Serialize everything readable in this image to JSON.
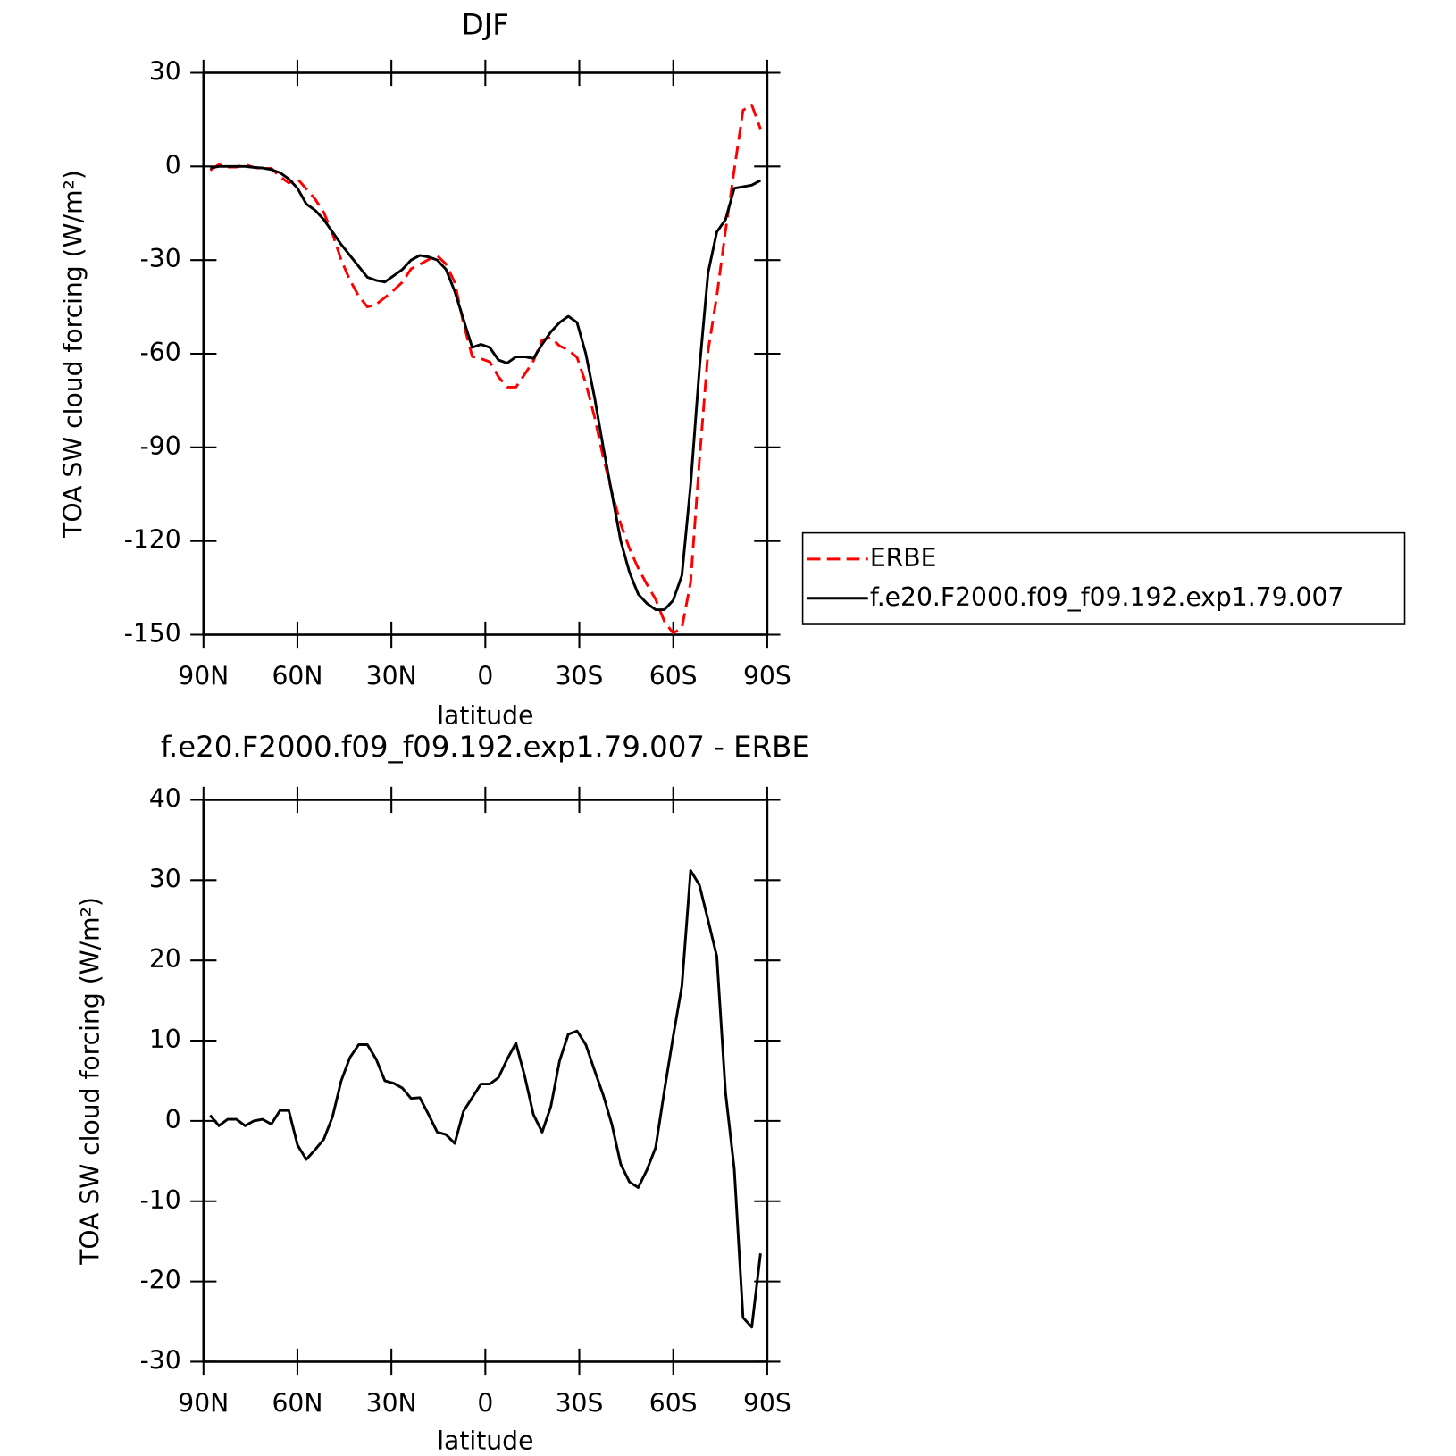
{
  "chart_data": [
    {
      "type": "line",
      "title": "DJF",
      "xlabel": "latitude",
      "ylabel": "TOA SW cloud forcing (W/m²)",
      "x": [
        87.86,
        85.07,
        82.28,
        79.49,
        76.7,
        73.91,
        71.13,
        68.34,
        65.55,
        62.76,
        59.97,
        57.18,
        54.39,
        51.6,
        48.81,
        46.02,
        43.24,
        40.45,
        37.66,
        34.87,
        32.08,
        29.29,
        26.5,
        23.71,
        20.92,
        18.13,
        15.35,
        12.56,
        9.77,
        6.98,
        4.19,
        1.4,
        -1.4,
        -4.19,
        -6.98,
        -9.77,
        -12.56,
        -15.35,
        -18.13,
        -20.92,
        -23.71,
        -26.5,
        -29.29,
        -32.08,
        -34.87,
        -37.66,
        -40.45,
        -43.24,
        -46.02,
        -48.81,
        -51.6,
        -54.39,
        -57.18,
        -59.97,
        -62.76,
        -65.55,
        -68.34,
        -71.13,
        -73.91,
        -76.7,
        -79.49,
        -82.28,
        -85.07,
        -87.86
      ],
      "series": [
        {
          "name": "ERBE",
          "color": "#ff0000",
          "dash": true,
          "values": [
            -1.2,
            0.6,
            -0.2,
            -0.2,
            0.6,
            -0.3,
            -0.7,
            -0.6,
            -3.3,
            -5.3,
            -4,
            -7.2,
            -10.4,
            -14.7,
            -21.5,
            -30,
            -36.4,
            -41.5,
            -45,
            -44.2,
            -42,
            -39.7,
            -37.1,
            -32.8,
            -31.4,
            -29.8,
            -28.6,
            -31.3,
            -37.2,
            -50.2,
            -60.9,
            -61.6,
            -62.6,
            -67.4,
            -70.7,
            -70.7,
            -66.6,
            -62.3,
            -55.6,
            -54.8,
            -57.5,
            -58.8,
            -61.2,
            -69.5,
            -80.3,
            -93.2,
            -104.5,
            -114.6,
            -122.4,
            -128.7,
            -133.9,
            -138.7,
            -145.8,
            -149.5,
            -147.8,
            -133.2,
            -94.4,
            -59,
            -41.5,
            -20.5,
            -1,
            18,
            19.7,
            12
          ]
        },
        {
          "name": "f.e20.F2000.f09_f09.192.exp1.79.007",
          "color": "#000000",
          "dash": false,
          "values": [
            -0.5,
            0,
            0,
            0,
            0,
            -0.3,
            -0.5,
            -1,
            -2,
            -4,
            -7,
            -12,
            -14,
            -17,
            -21,
            -25,
            -28.5,
            -32,
            -35.5,
            -36.5,
            -37,
            -35,
            -33,
            -30,
            -28.5,
            -29,
            -30,
            -33,
            -40,
            -49,
            -58,
            -57,
            -58,
            -62,
            -63,
            -61,
            -61,
            -61.5,
            -57,
            -53,
            -50,
            -48,
            -50,
            -60,
            -74,
            -90,
            -105,
            -120,
            -130,
            -137,
            -140,
            -142,
            -142,
            -139,
            -131,
            -102,
            -65,
            -34,
            -21,
            -17,
            -7,
            -6.5,
            -6,
            -4.5
          ]
        }
      ],
      "xlim": [
        90,
        -90
      ],
      "xticks": [
        {
          "value": 90,
          "label": "90N"
        },
        {
          "value": 60,
          "label": "60N"
        },
        {
          "value": 30,
          "label": "30N"
        },
        0,
        {
          "value": -30,
          "label": "30S"
        },
        {
          "value": -60,
          "label": "60S"
        },
        {
          "value": -90,
          "label": "90S"
        }
      ],
      "ylim": [
        -150,
        30
      ],
      "yticks": [
        30,
        0,
        -30,
        -60,
        -90,
        -120,
        -150
      ],
      "legend": "right"
    },
    {
      "type": "line",
      "title": "f.e20.F2000.f09_f09.192.exp1.79.007 - ERBE",
      "xlabel": "latitude",
      "ylabel": "TOA SW cloud forcing (W/m²)",
      "x": [
        87.86,
        85.07,
        82.28,
        79.49,
        76.7,
        73.91,
        71.13,
        68.34,
        65.55,
        62.76,
        59.97,
        57.18,
        54.39,
        51.6,
        48.81,
        46.02,
        43.24,
        40.45,
        37.66,
        34.87,
        32.08,
        29.29,
        26.5,
        23.71,
        20.92,
        18.13,
        15.35,
        12.56,
        9.77,
        6.98,
        4.19,
        1.4,
        -1.4,
        -4.19,
        -6.98,
        -9.77,
        -12.56,
        -15.35,
        -18.13,
        -20.92,
        -23.71,
        -26.5,
        -29.29,
        -32.08,
        -34.87,
        -37.66,
        -40.45,
        -43.24,
        -46.02,
        -48.81,
        -51.6,
        -54.39,
        -57.18,
        -59.97,
        -62.76,
        -65.55,
        -68.34,
        -71.13,
        -73.91,
        -76.7,
        -79.49,
        -82.28,
        -85.07,
        -87.86
      ],
      "series": [
        {
          "color": "#000000",
          "dash": false,
          "values": [
            0.7,
            -0.6,
            0.2,
            0.2,
            -0.6,
            0,
            0.2,
            -0.4,
            1.3,
            1.3,
            -3,
            -4.8,
            -3.6,
            -2.3,
            0.5,
            5,
            7.9,
            9.5,
            9.5,
            7.7,
            5,
            4.7,
            4.1,
            2.8,
            2.9,
            0.8,
            -1.4,
            -1.7,
            -2.8,
            1.2,
            2.9,
            4.6,
            4.6,
            5.4,
            7.7,
            9.7,
            5.6,
            0.8,
            -1.4,
            1.8,
            7.5,
            10.8,
            11.2,
            9.5,
            6.3,
            3.2,
            -0.5,
            -5.4,
            -7.6,
            -8.3,
            -6.1,
            -3.3,
            3.8,
            10.5,
            16.8,
            31.2,
            29.4,
            25,
            20.5,
            3.5,
            -6,
            -24.5,
            -25.7,
            -16.5
          ]
        }
      ],
      "xlim": [
        90,
        -90
      ],
      "xticks": [
        {
          "value": 90,
          "label": "90N"
        },
        {
          "value": 60,
          "label": "60N"
        },
        {
          "value": 30,
          "label": "30N"
        },
        0,
        {
          "value": -30,
          "label": "30S"
        },
        {
          "value": -60,
          "label": "60S"
        },
        {
          "value": -90,
          "label": "90S"
        }
      ],
      "ylim": [
        -30,
        40
      ],
      "yticks": [
        40,
        30,
        20,
        10,
        0,
        -10,
        -20,
        -30
      ]
    }
  ]
}
